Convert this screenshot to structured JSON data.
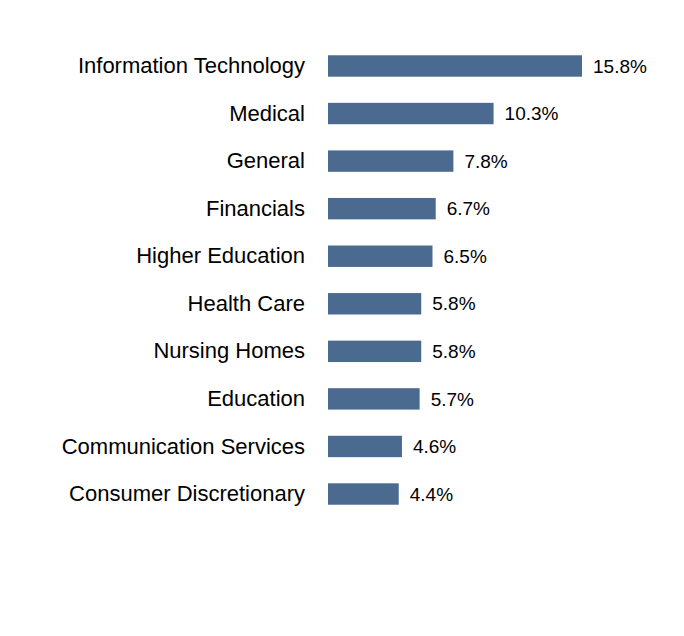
{
  "chart_data": {
    "type": "bar",
    "orientation": "horizontal",
    "categories": [
      "Information Technology",
      "Medical",
      "General",
      "Financials",
      "Higher Education",
      "Health Care",
      "Nursing Homes",
      "Education",
      "Communication Services",
      "Consumer Discretionary"
    ],
    "values": [
      15.8,
      10.3,
      7.8,
      6.7,
      6.5,
      5.8,
      5.8,
      5.7,
      4.6,
      4.4
    ],
    "value_labels": [
      "15.8%",
      "10.3%",
      "7.8%",
      "6.7%",
      "6.5%",
      "5.8%",
      "5.8%",
      "5.7%",
      "4.6%",
      "4.4%"
    ],
    "color": "#4a6a8f",
    "data_labels": true,
    "tick_labels": "y",
    "grid": false
  }
}
